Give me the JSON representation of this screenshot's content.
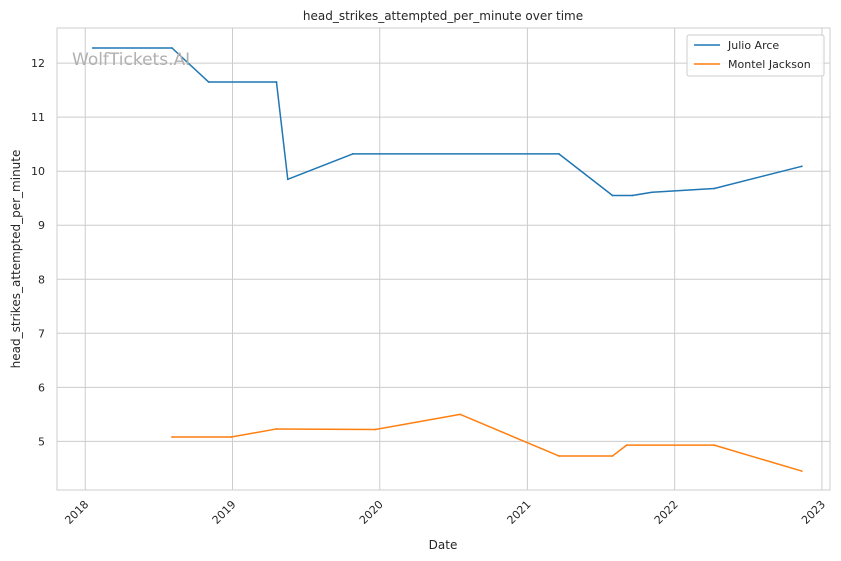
{
  "watermark": "WolfTickets.AI",
  "chart_data": {
    "type": "line",
    "title": "head_strikes_attempted_per_minute over time",
    "xlabel": "Date",
    "ylabel": "head_strikes_attempted_per_minute",
    "x_ticks": [
      "2018",
      "2019",
      "2020",
      "2021",
      "2022",
      "2023"
    ],
    "y_ticks": [
      "5",
      "6",
      "7",
      "8",
      "9",
      "10",
      "11",
      "12"
    ],
    "xlim": [
      "2017-10-23",
      "2023-01-21"
    ],
    "ylim": [
      4.1,
      12.65
    ],
    "grid": true,
    "legend_position": "top-right",
    "series": [
      {
        "name": "Julio Arce",
        "color": "#1f77b4",
        "x": [
          "2018-01-20",
          "2018-08-04",
          "2018-11-03",
          "2019-04-20",
          "2019-05-18",
          "2019-10-26",
          "2021-03-20",
          "2021-07-31",
          "2021-09-18",
          "2021-11-06",
          "2022-04-09",
          "2022-11-12"
        ],
        "y": [
          12.28,
          12.28,
          11.65,
          11.65,
          9.85,
          10.32,
          10.32,
          9.55,
          9.55,
          9.61,
          9.68,
          10.09
        ]
      },
      {
        "name": "Montel Jackson",
        "color": "#ff7f0e",
        "x": [
          "2018-08-04",
          "2018-12-29",
          "2019-04-20",
          "2019-12-21",
          "2020-07-18",
          "2021-03-20",
          "2021-07-31",
          "2021-09-04",
          "2022-04-09",
          "2022-11-12"
        ],
        "y": [
          5.08,
          5.08,
          5.23,
          5.22,
          5.5,
          4.73,
          4.73,
          4.93,
          4.93,
          4.45
        ]
      }
    ]
  }
}
